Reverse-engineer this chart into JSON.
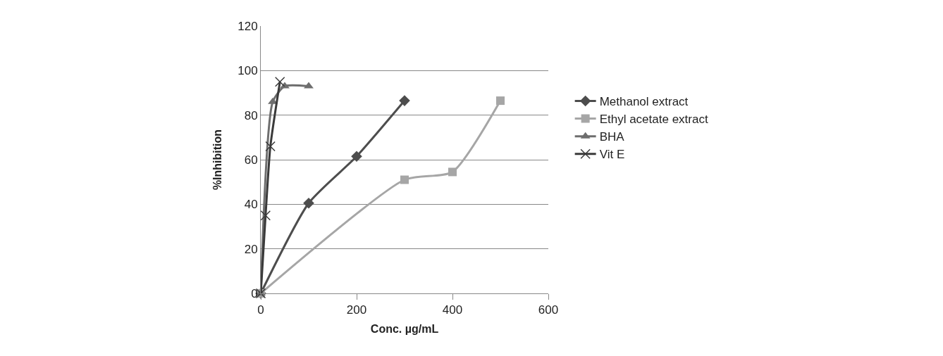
{
  "chart_data": {
    "type": "line",
    "xlabel": "Conc. µg/mL",
    "ylabel": "%Inhibition",
    "xlim": [
      0,
      600
    ],
    "xticks": [
      0,
      200,
      400,
      600
    ],
    "ylim": [
      0,
      120
    ],
    "yticks": [
      0,
      20,
      40,
      60,
      80,
      100,
      120
    ],
    "grid": "y",
    "legend": "right",
    "line_style": "solid",
    "series": [
      {
        "name": "Methanol extract",
        "color": "#4d4d4d",
        "marker": "diamond",
        "x": [
          0,
          100,
          200,
          300
        ],
        "values": [
          0,
          40.5,
          61.5,
          86.5
        ]
      },
      {
        "name": "Ethyl acetate extract",
        "color": "#a6a6a6",
        "marker": "square",
        "x": [
          0,
          300,
          400,
          500
        ],
        "values": [
          0,
          51,
          54.5,
          86.5
        ]
      },
      {
        "name": "BHA",
        "color": "#6e6e6e",
        "marker": "triangle",
        "x": [
          0,
          25,
          50,
          100
        ],
        "values": [
          0,
          86,
          93,
          93
        ]
      },
      {
        "name": "Vit E",
        "color": "#3a3a3a",
        "marker": "cross",
        "x": [
          0,
          10,
          20,
          40
        ],
        "values": [
          0,
          35,
          66,
          95
        ]
      }
    ]
  }
}
